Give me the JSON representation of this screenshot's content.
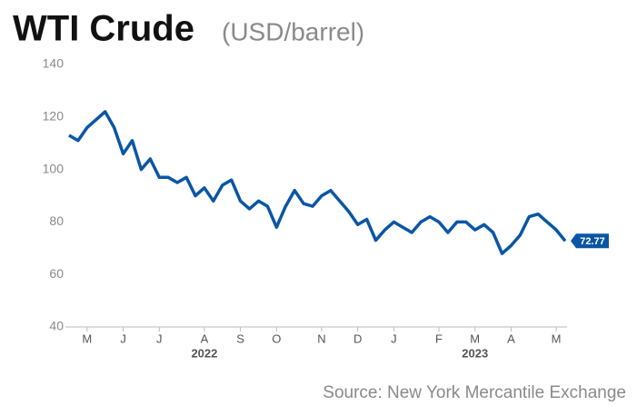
{
  "chart_data": {
    "type": "line",
    "title": "WTI Crude",
    "subtitle": "(USD/barrel)",
    "source": "Source: New York Mercantile Exchange",
    "categories": [
      null,
      null,
      "M",
      null,
      null,
      null,
      "J",
      null,
      null,
      null,
      "J",
      null,
      null,
      null,
      null,
      "A",
      null,
      null,
      null,
      "S",
      null,
      null,
      null,
      "O",
      null,
      null,
      null,
      null,
      "N",
      null,
      null,
      null,
      "D",
      null,
      null,
      null,
      "J",
      null,
      null,
      null,
      null,
      "F",
      null,
      null,
      null,
      "M",
      null,
      null,
      null,
      "A",
      null,
      null,
      null,
      null,
      "M",
      null
    ],
    "year_categories": [
      null,
      null,
      null,
      null,
      null,
      null,
      null,
      null,
      null,
      null,
      null,
      null,
      null,
      null,
      null,
      "2022",
      null,
      null,
      null,
      null,
      null,
      null,
      null,
      null,
      null,
      null,
      null,
      null,
      null,
      null,
      null,
      null,
      null,
      null,
      null,
      null,
      null,
      null,
      null,
      null,
      null,
      null,
      null,
      null,
      null,
      "2023",
      null,
      null,
      null,
      null,
      null,
      null,
      null,
      null,
      null,
      null
    ],
    "series": [
      {
        "name": "WTI Crude",
        "color": "#0a56a5",
        "values": [
          113,
          111,
          116,
          119,
          122,
          116,
          106,
          111,
          100,
          104,
          97,
          97,
          95,
          97,
          90,
          93,
          88,
          94,
          96,
          88,
          85,
          88,
          86,
          78,
          86,
          92,
          87,
          86,
          90,
          92,
          88,
          84,
          79,
          81,
          73,
          77,
          80,
          78,
          76,
          80,
          82,
          80,
          76,
          80,
          80,
          77,
          79,
          76,
          68,
          71,
          75,
          82,
          83,
          80,
          77,
          72.77
        ],
        "value_labels": [
          null,
          null,
          null,
          null,
          null,
          null,
          null,
          null,
          null,
          null,
          null,
          null,
          null,
          null,
          null,
          null,
          null,
          null,
          null,
          null,
          null,
          null,
          null,
          null,
          null,
          null,
          null,
          null,
          null,
          null,
          null,
          null,
          null,
          null,
          null,
          null,
          null,
          null,
          null,
          null,
          null,
          null,
          null,
          null,
          null,
          null,
          null,
          null,
          null,
          null,
          null,
          null,
          null,
          null,
          null,
          "72.77"
        ]
      }
    ],
    "ylim": [
      40,
      140
    ],
    "yticks": [
      40,
      60,
      80,
      100,
      120,
      140
    ],
    "grid": false
  }
}
